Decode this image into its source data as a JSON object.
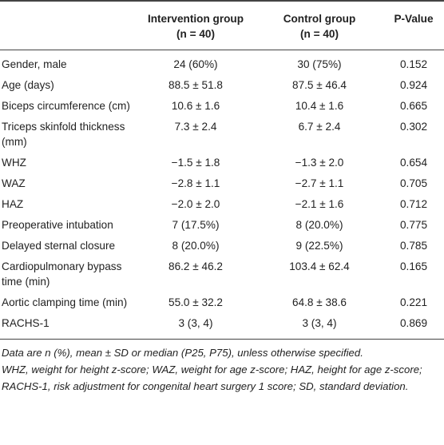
{
  "table": {
    "header": [
      [
        ""
      ],
      [
        "Intervention group",
        "(n = 40)"
      ],
      [
        "Control group",
        "(n = 40)"
      ],
      [
        "P-Value"
      ]
    ],
    "rows": [
      [
        "Gender, male",
        "24 (60%)",
        "30 (75%)",
        "0.152"
      ],
      [
        "Age (days)",
        "88.5 ± 51.8",
        "87.5 ± 46.4",
        "0.924"
      ],
      [
        "Biceps circumference (cm)",
        "10.6 ± 1.6",
        "10.4 ± 1.6",
        "0.665"
      ],
      [
        "Triceps skinfold thickness (mm)",
        "7.3 ± 2.4",
        "6.7 ± 2.4",
        "0.302"
      ],
      [
        "WHZ",
        "−1.5 ± 1.8",
        "−1.3 ± 2.0",
        "0.654"
      ],
      [
        "WAZ",
        "−2.8 ± 1.1",
        "−2.7 ± 1.1",
        "0.705"
      ],
      [
        "HAZ",
        "−2.0 ± 2.0",
        "−2.1 ± 1.6",
        "0.712"
      ],
      [
        "Preoperative intubation",
        "7 (17.5%)",
        "8 (20.0%)",
        "0.775"
      ],
      [
        "Delayed sternal closure",
        "8 (20.0%)",
        "9 (22.5%)",
        "0.785"
      ],
      [
        "Cardiopulmonary bypass time (min)",
        "86.2 ± 46.2",
        "103.4 ± 62.4",
        "0.165"
      ],
      [
        "Aortic clamping time (min)",
        "55.0 ± 32.2",
        "64.8 ± 38.6",
        "0.221"
      ],
      [
        "RACHS-1",
        "3 (3, 4)",
        "3 (3, 4)",
        "0.869"
      ]
    ]
  },
  "notes": [
    "Data are n (%), mean ± SD or median (P25, P75), unless otherwise specified.",
    "WHZ, weight for height z-score; WAZ, weight for age z-score; HAZ, height for age z-score;",
    "RACHS-1, risk adjustment for congenital heart surgery 1 score; SD, standard deviation."
  ]
}
